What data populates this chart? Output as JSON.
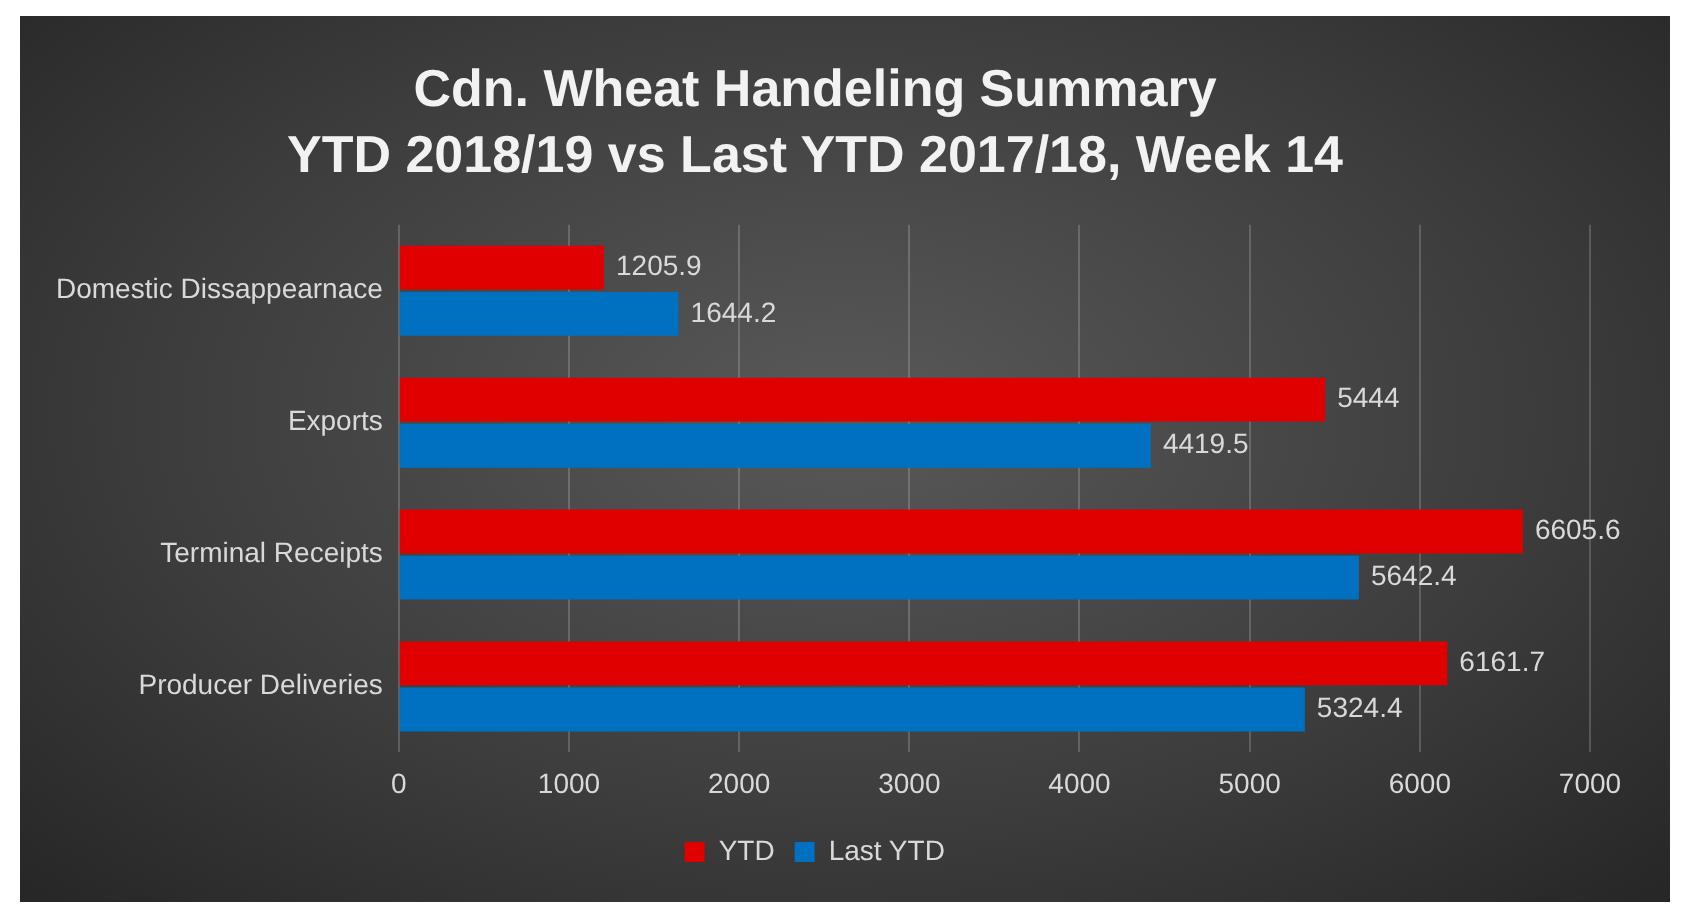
{
  "chart_data": {
    "type": "bar",
    "orientation": "horizontal",
    "title": "Cdn. Wheat Handeling Summary",
    "subtitle": "YTD 2018/19 vs Last YTD 2017/18, Week 14",
    "categories": [
      "Domestic Dissappearnace",
      "Exports",
      "Terminal Receipts",
      "Producer Deliveries"
    ],
    "series": [
      {
        "name": "YTD",
        "color": "#e00000",
        "values": [
          1205.9,
          5444,
          6605.6,
          6161.7
        ]
      },
      {
        "name": "Last YTD",
        "color": "#0070c0",
        "values": [
          1644.2,
          4419.5,
          5642.4,
          5324.4
        ]
      }
    ],
    "xlim": [
      0,
      7000
    ],
    "xticks": [
      0,
      1000,
      2000,
      3000,
      4000,
      5000,
      6000,
      7000
    ],
    "grid": "x",
    "legend": "bottom",
    "data_labels": true
  }
}
